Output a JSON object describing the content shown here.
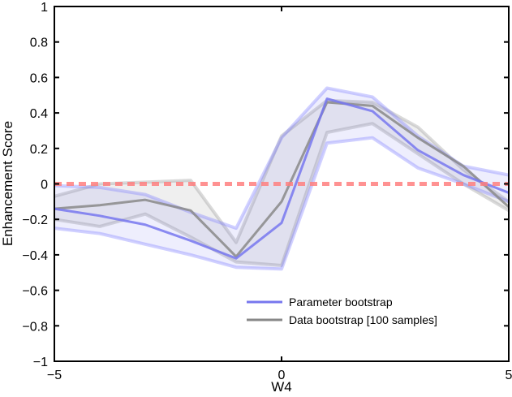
{
  "chart_data": {
    "type": "line",
    "xlabel": "W4",
    "ylabel": "Enhancement Score",
    "xlim": [
      -5,
      5
    ],
    "ylim": [
      -1,
      1
    ],
    "xticks": [
      -5,
      0,
      5
    ],
    "xtick_labels": [
      "−5",
      "0",
      "5"
    ],
    "yticks": [
      -1,
      -0.8,
      -0.6,
      -0.4,
      -0.2,
      0,
      0.2,
      0.4,
      0.6,
      0.8,
      1
    ],
    "ytick_labels": [
      "−1",
      "−0.8",
      "−0.6",
      "−0.4",
      "−0.2",
      "0",
      "0.2",
      "0.4",
      "0.6",
      "0.8",
      "1"
    ],
    "x": [
      -5,
      -4,
      -3,
      -2,
      -1,
      0,
      1,
      2,
      3,
      4,
      5
    ],
    "reference_line": {
      "y": 0,
      "color": "#ff8080",
      "style": "dashed"
    },
    "legend_position": "bottom-right",
    "series": [
      {
        "name": "Data bootstrap [100 samples]",
        "color": "#888888",
        "values": [
          -0.14,
          -0.12,
          -0.09,
          -0.15,
          -0.41,
          -0.1,
          0.46,
          0.44,
          0.26,
          0.1,
          -0.13
        ],
        "upper": [
          -0.07,
          0.0,
          0.01,
          0.02,
          -0.33,
          0.27,
          0.47,
          0.46,
          0.32,
          0.08,
          -0.1
        ],
        "lower": [
          -0.2,
          -0.24,
          -0.17,
          -0.3,
          -0.44,
          -0.46,
          0.29,
          0.34,
          0.17,
          0.0,
          -0.15
        ]
      },
      {
        "name": "Parameter bootstrap",
        "color": "#7777ee",
        "values": [
          -0.14,
          -0.18,
          -0.23,
          -0.32,
          -0.42,
          -0.22,
          0.48,
          0.41,
          0.19,
          0.05,
          -0.05
        ],
        "upper": [
          -0.01,
          -0.02,
          -0.06,
          -0.16,
          -0.25,
          0.26,
          0.54,
          0.49,
          0.27,
          0.1,
          0.05
        ],
        "lower": [
          -0.25,
          -0.28,
          -0.34,
          -0.4,
          -0.47,
          -0.48,
          0.23,
          0.26,
          0.09,
          0.0,
          -0.1
        ]
      }
    ]
  }
}
